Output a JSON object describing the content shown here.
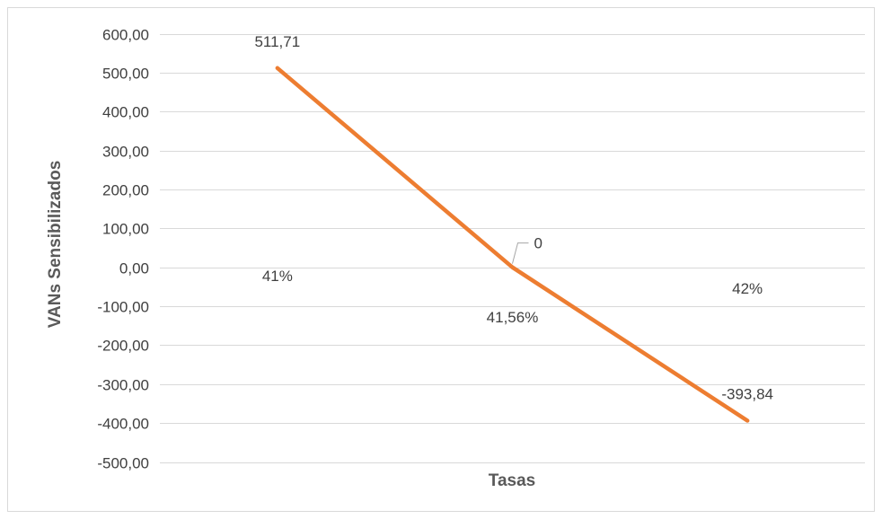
{
  "chart_data": {
    "type": "line",
    "title": "",
    "xlabel": "Tasas",
    "ylabel": "VANs Sensibilizados",
    "categories": [
      "41%",
      "41,56%",
      "42%"
    ],
    "series": [
      {
        "values": [
          511.71,
          0,
          -393.84
        ],
        "labels": [
          "511,71",
          "0",
          "-393,84"
        ]
      }
    ],
    "ylim": [
      -500,
      600
    ],
    "ytick_step": 100,
    "ytick_labels": [
      "600,00",
      "500,00",
      "400,00",
      "300,00",
      "200,00",
      "100,00",
      "0,00",
      "-100,00",
      "-200,00",
      "-300,00",
      "-400,00",
      "-500,00"
    ],
    "grid": true,
    "legend": "none",
    "colors": {
      "line": "#ED7D31",
      "grid": "#D9D9D9",
      "text": "#404040",
      "axis_title": "#595959",
      "border": "#D9D9D9"
    }
  }
}
